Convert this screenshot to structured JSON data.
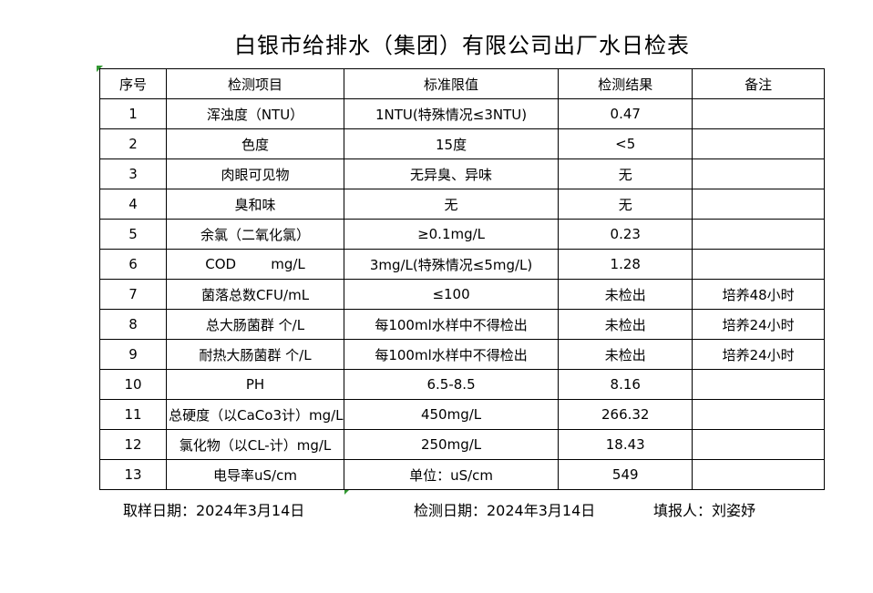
{
  "page": {
    "title": "白银市给排水（集团）有限公司出厂水日检表"
  },
  "table": {
    "headers": [
      "序号",
      "检测项目",
      "标准限值",
      "检测结果",
      "备注"
    ],
    "rows": [
      {
        "no": "1",
        "item": "浑浊度（NTU）",
        "limit": "1NTU(特殊情况≤3NTU)",
        "result": "0.47",
        "remark": ""
      },
      {
        "no": "2",
        "item": "色度",
        "limit": "15度",
        "result": "<5",
        "remark": ""
      },
      {
        "no": "3",
        "item": "肉眼可见物",
        "limit": "无异臭、异味",
        "result": "无",
        "remark": ""
      },
      {
        "no": "4",
        "item": "臭和味",
        "limit": "无",
        "result": "无",
        "remark": ""
      },
      {
        "no": "5",
        "item": "余氯（二氧化氯）",
        "limit": "≥0.1mg/L",
        "result": "0.23",
        "remark": ""
      },
      {
        "no": "6",
        "item": "COD        mg/L",
        "limit": "3mg/L(特殊情况≤5mg/L)",
        "result": "1.28",
        "remark": ""
      },
      {
        "no": "7",
        "item": "菌落总数CFU/mL",
        "limit": "≤100",
        "result": "未检出",
        "remark": "培养48小时"
      },
      {
        "no": "8",
        "item": "总大肠菌群 个/L",
        "limit": "每100ml水样中不得检出",
        "result": "未检出",
        "remark": "培养24小时"
      },
      {
        "no": "9",
        "item": "耐热大肠菌群 个/L",
        "limit": "每100ml水样中不得检出",
        "result": "未检出",
        "remark": "培养24小时"
      },
      {
        "no": "10",
        "item": "PH",
        "limit": "6.5-8.5",
        "result": "8.16",
        "remark": ""
      },
      {
        "no": "11",
        "item": "总硬度（以CaCo3计）mg/L",
        "limit": "450mg/L",
        "result": "266.32",
        "remark": ""
      },
      {
        "no": "12",
        "item": "氯化物（以CL-计）mg/L",
        "limit": "250mg/L",
        "result": "18.43",
        "remark": ""
      },
      {
        "no": "13",
        "item": "电导率uS/cm",
        "limit": "单位：uS/cm",
        "result": "549",
        "remark": ""
      }
    ]
  },
  "footer": {
    "sampling_date": "取样日期：2024年3月14日",
    "test_date": "检测日期：2024年3月14日",
    "reporter": "填报人：刘姿妤"
  },
  "colors": {
    "error_indicator_green": "#339933",
    "border_black": "#000000",
    "background_white": "#ffffff"
  }
}
